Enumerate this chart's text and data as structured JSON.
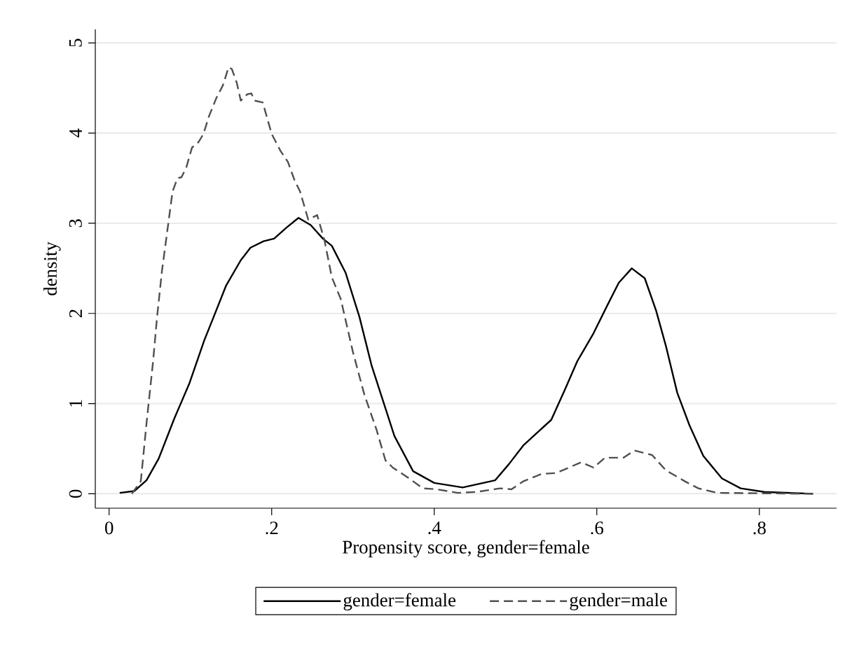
{
  "chart_data": {
    "type": "line",
    "xlabel": "Propensity score, gender=female",
    "ylabel": "density",
    "xlim": [
      -0.017,
      0.895
    ],
    "ylim": [
      -0.16,
      5.15
    ],
    "xticks": [
      0,
      {
        "value": 0.2,
        "label": ".2"
      },
      {
        "value": 0.4,
        "label": ".4"
      },
      {
        "value": 0.6,
        "label": ".6"
      },
      {
        "value": 0.8,
        "label": ".8"
      }
    ],
    "yticks": [
      0,
      1,
      2,
      3,
      4,
      5
    ],
    "grid": "y",
    "legend": "bottom",
    "series": [
      {
        "name": "gender=female",
        "color": "#000000",
        "line_style": "solid",
        "x": [
          0.013,
          0.031,
          0.046,
          0.061,
          0.08,
          0.099,
          0.117,
          0.129,
          0.144,
          0.162,
          0.174,
          0.19,
          0.203,
          0.218,
          0.233,
          0.248,
          0.263,
          0.274,
          0.291,
          0.308,
          0.323,
          0.337,
          0.351,
          0.374,
          0.4,
          0.435,
          0.475,
          0.492,
          0.51,
          0.521,
          0.544,
          0.561,
          0.576,
          0.596,
          0.613,
          0.627,
          0.643,
          0.659,
          0.673,
          0.685,
          0.699,
          0.714,
          0.731,
          0.754,
          0.777,
          0.806,
          0.866
        ],
        "values": [
          0.01,
          0.03,
          0.15,
          0.39,
          0.83,
          1.23,
          1.7,
          1.97,
          2.31,
          2.59,
          2.73,
          2.8,
          2.83,
          2.95,
          3.06,
          2.98,
          2.83,
          2.75,
          2.45,
          1.96,
          1.42,
          1.03,
          0.64,
          0.25,
          0.12,
          0.07,
          0.15,
          0.33,
          0.54,
          0.63,
          0.82,
          1.16,
          1.47,
          1.78,
          2.09,
          2.34,
          2.5,
          2.39,
          2.03,
          1.64,
          1.12,
          0.76,
          0.42,
          0.17,
          0.06,
          0.02,
          0
        ]
      },
      {
        "name": "gender=male",
        "color": "#505050",
        "line_style": "dashed",
        "x": [
          0.028,
          0.039,
          0.046,
          0.054,
          0.059,
          0.065,
          0.073,
          0.078,
          0.084,
          0.089,
          0.095,
          0.102,
          0.11,
          0.116,
          0.123,
          0.132,
          0.14,
          0.147,
          0.151,
          0.157,
          0.162,
          0.17,
          0.175,
          0.179,
          0.189,
          0.2,
          0.211,
          0.22,
          0.228,
          0.235,
          0.245,
          0.256,
          0.265,
          0.274,
          0.285,
          0.3,
          0.314,
          0.329,
          0.34,
          0.349,
          0.366,
          0.386,
          0.403,
          0.429,
          0.452,
          0.481,
          0.495,
          0.51,
          0.532,
          0.55,
          0.581,
          0.596,
          0.61,
          0.633,
          0.646,
          0.668,
          0.685,
          0.708,
          0.725,
          0.748,
          0.866
        ],
        "values": [
          0,
          0.14,
          0.78,
          1.46,
          1.96,
          2.47,
          3.01,
          3.35,
          3.5,
          3.51,
          3.62,
          3.84,
          3.9,
          3.99,
          4.19,
          4.39,
          4.53,
          4.73,
          4.71,
          4.56,
          4.36,
          4.43,
          4.44,
          4.36,
          4.34,
          3.99,
          3.8,
          3.68,
          3.48,
          3.35,
          3.04,
          3.09,
          2.81,
          2.4,
          2.16,
          1.57,
          1.1,
          0.71,
          0.37,
          0.29,
          0.19,
          0.06,
          0.05,
          0.01,
          0.02,
          0.06,
          0.05,
          0.14,
          0.22,
          0.23,
          0.35,
          0.29,
          0.4,
          0.4,
          0.48,
          0.43,
          0.26,
          0.14,
          0.06,
          0.01,
          0
        ]
      }
    ]
  }
}
